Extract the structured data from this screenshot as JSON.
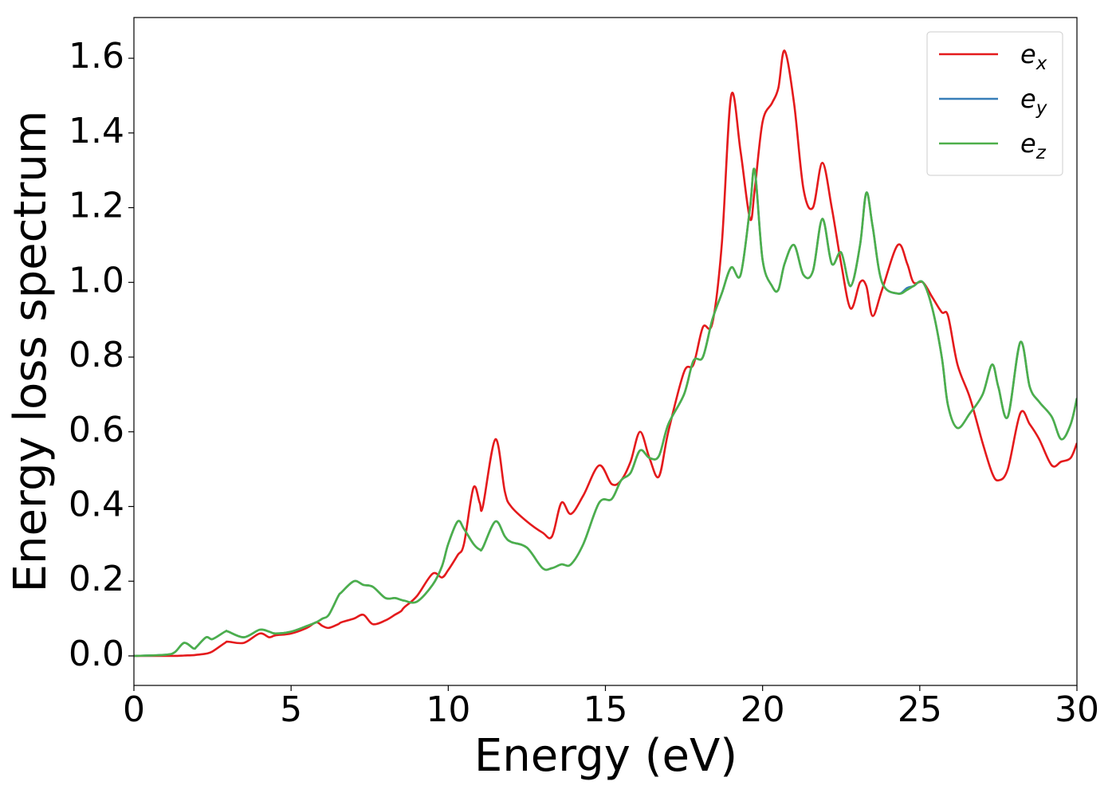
{
  "chart_data": {
    "type": "line",
    "x_label": "Energy (eV)",
    "y_label": "Energy loss spectrum",
    "x": [
      0,
      1,
      1.3,
      1.6,
      1.9,
      2,
      2.3,
      2.5,
      2.9,
      3,
      3.5,
      4,
      4.3,
      4.5,
      5,
      5.5,
      5.8,
      6,
      6.2,
      6.5,
      6.6,
      7,
      7.3,
      7.6,
      8,
      8.3,
      8.5,
      8.6,
      9,
      9.5,
      9.8,
      10,
      10.3,
      10.5,
      10.8,
      11,
      11.1,
      11.5,
      11.8,
      12,
      12.5,
      13,
      13.3,
      13.6,
      13.9,
      14.3,
      14.8,
      15.2,
      15.5,
      15.8,
      16.1,
      16.4,
      16.7,
      17,
      17.5,
      17.8,
      18.1,
      18.4,
      18.7,
      19,
      19.3,
      19.6,
      19.75,
      20,
      20.3,
      20.5,
      20.7,
      21,
      21.3,
      21.6,
      21.9,
      22.2,
      22.5,
      22.8,
      23.1,
      23.3,
      23.5,
      23.8,
      24.3,
      24.6,
      24.8,
      25.1,
      25.4,
      25.7,
      25.9,
      26.2,
      26.6,
      27,
      27.3,
      27.5,
      27.8,
      28.2,
      28.5,
      28.8,
      29.2,
      29.5,
      29.8,
      30
    ],
    "series": [
      {
        "name": "e_x",
        "color": "#e41a1c",
        "values": [
          0,
          0,
          0,
          0.001,
          0.002,
          0.003,
          0.006,
          0.012,
          0.035,
          0.038,
          0.035,
          0.06,
          0.05,
          0.055,
          0.06,
          0.075,
          0.09,
          0.08,
          0.075,
          0.085,
          0.09,
          0.1,
          0.11,
          0.085,
          0.095,
          0.11,
          0.12,
          0.13,
          0.16,
          0.22,
          0.21,
          0.23,
          0.27,
          0.3,
          0.45,
          0.41,
          0.4,
          0.58,
          0.44,
          0.4,
          0.36,
          0.33,
          0.32,
          0.41,
          0.38,
          0.43,
          0.51,
          0.46,
          0.47,
          0.52,
          0.6,
          0.53,
          0.48,
          0.6,
          0.76,
          0.78,
          0.88,
          0.89,
          1.1,
          1.5,
          1.35,
          1.17,
          1.25,
          1.43,
          1.48,
          1.52,
          1.62,
          1.48,
          1.25,
          1.2,
          1.32,
          1.2,
          1.05,
          0.93,
          1.0,
          0.99,
          0.91,
          0.98,
          1.1,
          1.05,
          1.0,
          1.0,
          0.96,
          0.92,
          0.91,
          0.78,
          0.69,
          0.57,
          0.49,
          0.47,
          0.5,
          0.65,
          0.62,
          0.58,
          0.51,
          0.52,
          0.53,
          0.57
        ]
      },
      {
        "name": "e_y",
        "color": "#377eb8",
        "values": [
          0,
          0.003,
          0.01,
          0.035,
          0.02,
          0.025,
          0.05,
          0.045,
          0.065,
          0.065,
          0.05,
          0.07,
          0.065,
          0.06,
          0.065,
          0.08,
          0.09,
          0.1,
          0.11,
          0.16,
          0.17,
          0.2,
          0.19,
          0.185,
          0.155,
          0.155,
          0.15,
          0.148,
          0.145,
          0.19,
          0.24,
          0.3,
          0.36,
          0.34,
          0.3,
          0.285,
          0.29,
          0.36,
          0.32,
          0.305,
          0.29,
          0.235,
          0.235,
          0.245,
          0.245,
          0.3,
          0.41,
          0.42,
          0.47,
          0.49,
          0.55,
          0.53,
          0.535,
          0.62,
          0.7,
          0.79,
          0.8,
          0.9,
          0.97,
          1.04,
          1.02,
          1.2,
          1.3,
          1.06,
          0.99,
          0.98,
          1.05,
          1.1,
          1.02,
          1.03,
          1.17,
          1.05,
          1.08,
          0.99,
          1.1,
          1.24,
          1.15,
          1.0,
          0.97,
          0.985,
          0.99,
          1.0,
          0.93,
          0.8,
          0.67,
          0.61,
          0.65,
          0.7,
          0.78,
          0.72,
          0.64,
          0.84,
          0.72,
          0.68,
          0.64,
          0.58,
          0.62,
          0.69
        ]
      },
      {
        "name": "e_z",
        "color": "#4daf4a",
        "values": [
          0,
          0.003,
          0.01,
          0.035,
          0.02,
          0.025,
          0.05,
          0.045,
          0.065,
          0.065,
          0.05,
          0.07,
          0.065,
          0.06,
          0.065,
          0.08,
          0.09,
          0.1,
          0.11,
          0.16,
          0.17,
          0.2,
          0.19,
          0.185,
          0.155,
          0.155,
          0.15,
          0.148,
          0.145,
          0.19,
          0.24,
          0.3,
          0.36,
          0.34,
          0.3,
          0.285,
          0.29,
          0.36,
          0.32,
          0.305,
          0.29,
          0.235,
          0.235,
          0.245,
          0.245,
          0.3,
          0.41,
          0.42,
          0.47,
          0.49,
          0.55,
          0.53,
          0.535,
          0.62,
          0.7,
          0.79,
          0.8,
          0.9,
          0.97,
          1.04,
          1.02,
          1.2,
          1.3,
          1.06,
          0.99,
          0.98,
          1.05,
          1.1,
          1.02,
          1.03,
          1.17,
          1.05,
          1.08,
          0.99,
          1.1,
          1.24,
          1.15,
          1.0,
          0.97,
          0.98,
          0.99,
          1.0,
          0.93,
          0.8,
          0.67,
          0.61,
          0.65,
          0.7,
          0.78,
          0.72,
          0.64,
          0.84,
          0.72,
          0.68,
          0.64,
          0.58,
          0.62,
          0.69
        ]
      }
    ],
    "xlim": [
      0,
      30
    ],
    "ylim": [
      -0.079,
      1.709
    ],
    "xticks": [
      0,
      5,
      10,
      15,
      20,
      25,
      30
    ],
    "yticks": [
      {
        "value": 0,
        "label": "0.0"
      },
      {
        "value": 0.2,
        "label": "0.2"
      },
      {
        "value": 0.4,
        "label": "0.4"
      },
      {
        "value": 0.6,
        "label": "0.6"
      },
      {
        "value": 0.8,
        "label": "0.8"
      },
      {
        "value": 1,
        "label": "1.0"
      },
      {
        "value": 1.2,
        "label": "1.2"
      },
      {
        "value": 1.4,
        "label": "1.4"
      },
      {
        "value": 1.6,
        "label": "1.6"
      }
    ],
    "grid": false,
    "legend": "upper right"
  }
}
